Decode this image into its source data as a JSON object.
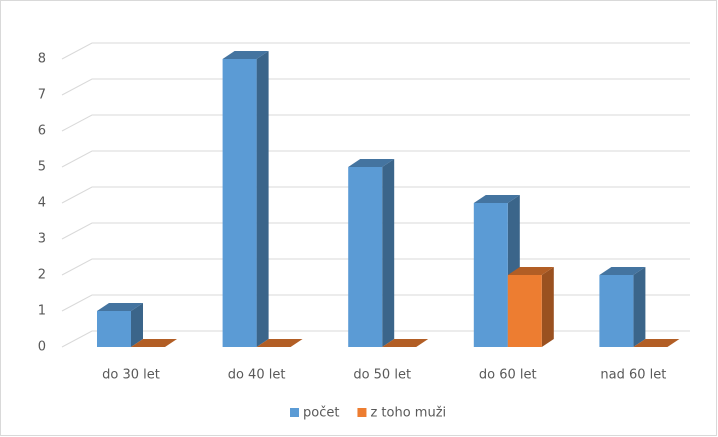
{
  "chart_data": {
    "type": "bar3d",
    "categories": [
      "do 30 let",
      "do 40 let",
      "do 50 let",
      "do 60 let",
      "nad 60 let"
    ],
    "series": [
      {
        "name": "počet",
        "color": "#5b9bd5",
        "values": [
          1,
          8,
          5,
          4,
          2
        ]
      },
      {
        "name": "z toho muži",
        "color": "#ed7d31",
        "values": [
          0,
          0,
          0,
          2,
          0
        ]
      }
    ],
    "ylim": [
      0,
      8
    ],
    "yticks": [
      0,
      1,
      2,
      3,
      4,
      5,
      6,
      7,
      8
    ],
    "grid": true,
    "legend": "bottom"
  }
}
